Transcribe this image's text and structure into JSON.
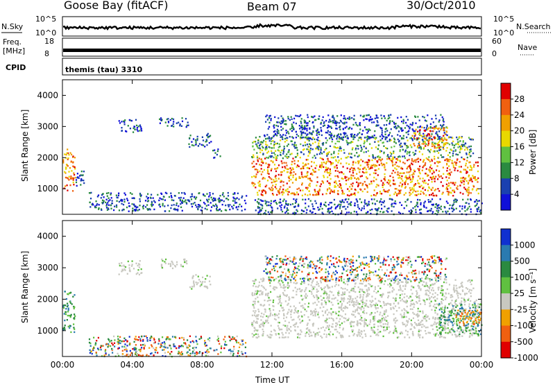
{
  "header": {
    "station": "Goose Bay (fitACF)",
    "beam": "Beam 07",
    "date": "30/Oct/2010"
  },
  "top_panels": {
    "nsky_label": "N.Sky",
    "nsky_tick_top": "10^5",
    "nsky_tick_bottom": "10^0",
    "nsearch_label": "N.Search",
    "nsearch_tick_top": "10^5",
    "nsearch_tick_bottom": "10^0",
    "freq_label_line1": "Freq.",
    "freq_label_line2": "[MHz]",
    "freq_tick_top": "18",
    "freq_tick_bottom": "8",
    "nave_label": "Nave",
    "nave_tick_top": "60",
    "nave_tick_bottom": "0",
    "cpid_label": "CPID",
    "cpid_value": "themis (tau) 3310"
  },
  "chart_data": [
    {
      "type": "heatmap",
      "name": "power",
      "ylabel": "Slant Range [km]",
      "xlabel": "",
      "ylim": [
        180,
        4500
      ],
      "xlim": [
        0,
        24
      ],
      "x_ticks": [
        "00:00",
        "04:00",
        "08:00",
        "12:00",
        "16:00",
        "20:00",
        "00:00"
      ],
      "y_ticks": [
        "1000",
        "2000",
        "3000",
        "4000"
      ],
      "colorbar_label": "Power [dB]",
      "colorbar_ticks": [
        "28",
        "24",
        "20",
        "16",
        "12",
        "8",
        "4"
      ],
      "colorbar_colors": [
        "#e00000",
        "#f06010",
        "#f0a000",
        "#e8d800",
        "#60c040",
        "#2a8a40",
        "#1a40b0",
        "#1010d8"
      ],
      "backscatter_regions": [
        {
          "t0": 0.0,
          "t1": 0.7,
          "r0": 950,
          "r1": 2300,
          "level": "high"
        },
        {
          "t0": 0.6,
          "t1": 1.2,
          "r0": 1100,
          "r1": 1600,
          "level": "low"
        },
        {
          "t0": 3.2,
          "t1": 4.5,
          "r0": 2800,
          "r1": 3250,
          "level": "low"
        },
        {
          "t0": 5.5,
          "t1": 7.2,
          "r0": 3000,
          "r1": 3300,
          "level": "low"
        },
        {
          "t0": 7.2,
          "t1": 8.5,
          "r0": 2350,
          "r1": 2800,
          "level": "low"
        },
        {
          "t0": 8.5,
          "t1": 9.0,
          "r0": 2000,
          "r1": 2300,
          "level": "low"
        },
        {
          "t0": 1.5,
          "t1": 10.5,
          "r0": 300,
          "r1": 900,
          "level": "low"
        },
        {
          "t0": 10.8,
          "t1": 23.8,
          "r0": 800,
          "r1": 2000,
          "level": "high"
        },
        {
          "t0": 10.8,
          "t1": 23.5,
          "r0": 2000,
          "r1": 2700,
          "level": "mid"
        },
        {
          "t0": 11.5,
          "t1": 22.0,
          "r0": 2600,
          "r1": 3400,
          "level": "low"
        },
        {
          "t0": 20.0,
          "t1": 22.0,
          "r0": 2300,
          "r1": 3000,
          "level": "high"
        },
        {
          "t0": 11.0,
          "t1": 24.0,
          "r0": 200,
          "r1": 700,
          "level": "low"
        }
      ]
    },
    {
      "type": "heatmap",
      "name": "velocity",
      "ylabel": "Slant Range [km]",
      "xlabel": "Time UT",
      "ylim": [
        180,
        4500
      ],
      "xlim": [
        0,
        24
      ],
      "x_ticks": [
        "00:00",
        "04:00",
        "08:00",
        "12:00",
        "16:00",
        "20:00",
        "00:00"
      ],
      "y_ticks": [
        "1000",
        "2000",
        "3000",
        "4000"
      ],
      "colorbar_label": "Velocity [m s⁻¹]",
      "colorbar_ticks": [
        "1000",
        "500",
        "100",
        "25",
        "-25",
        "-100",
        "-500",
        "-1000"
      ],
      "colorbar_colors": [
        "#1030d0",
        "#2a7ab0",
        "#2a8a40",
        "#60c040",
        "#c8c8c0",
        "#f0a000",
        "#f06010",
        "#e00000"
      ],
      "backscatter_regions": [
        {
          "t0": 0.0,
          "t1": 0.7,
          "r0": 950,
          "r1": 2300,
          "level": "pos"
        },
        {
          "t0": 3.2,
          "t1": 4.5,
          "r0": 2800,
          "r1": 3250,
          "level": "zero"
        },
        {
          "t0": 5.5,
          "t1": 7.2,
          "r0": 3000,
          "r1": 3300,
          "level": "zero"
        },
        {
          "t0": 7.2,
          "t1": 8.5,
          "r0": 2350,
          "r1": 2800,
          "level": "zero"
        },
        {
          "t0": 1.5,
          "t1": 10.5,
          "r0": 200,
          "r1": 850,
          "level": "mixed"
        },
        {
          "t0": 10.8,
          "t1": 23.8,
          "r0": 800,
          "r1": 2000,
          "level": "zero"
        },
        {
          "t0": 10.8,
          "t1": 23.5,
          "r0": 2000,
          "r1": 2700,
          "level": "zero"
        },
        {
          "t0": 11.5,
          "t1": 22.0,
          "r0": 2600,
          "r1": 3400,
          "level": "mixed"
        },
        {
          "t0": 21.5,
          "t1": 24.0,
          "r0": 900,
          "r1": 1900,
          "level": "pos"
        },
        {
          "t0": 22.5,
          "t1": 24.0,
          "r0": 1200,
          "r1": 1700,
          "level": "neg"
        }
      ]
    }
  ]
}
